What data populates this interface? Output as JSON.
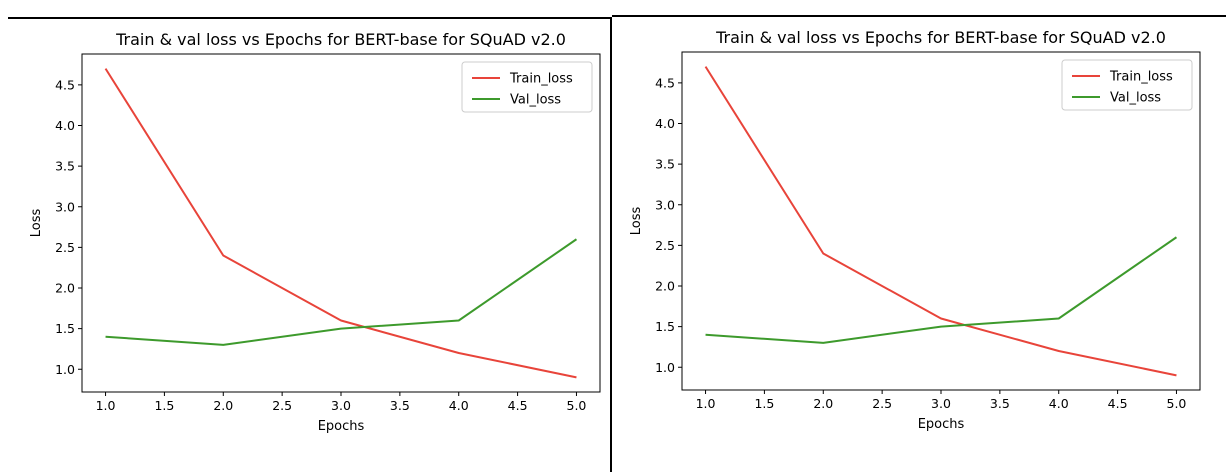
{
  "colors": {
    "train": "#e8443a",
    "val": "#3d9a2c",
    "axis": "#000000",
    "legend_border": "#cccccc"
  },
  "chart_data": [
    {
      "type": "line",
      "title": "Train & val loss vs Epochs for BERT-base for SQuAD v2.0",
      "xlabel": "Epochs",
      "ylabel": "Loss",
      "xlim": [
        0.8,
        5.2
      ],
      "ylim": [
        0.72,
        4.88
      ],
      "xticks": [
        "1.0",
        "1.5",
        "2.0",
        "2.5",
        "3.0",
        "3.5",
        "4.0",
        "4.5",
        "5.0"
      ],
      "yticks": [
        "1.0",
        "1.5",
        "2.0",
        "2.5",
        "3.0",
        "3.5",
        "4.0",
        "4.5"
      ],
      "legend_position": "top-right",
      "grid": false,
      "x": [
        1,
        2,
        3,
        4,
        5
      ],
      "series": [
        {
          "name": "Train_loss",
          "color": "#e8443a",
          "values": [
            4.7,
            2.4,
            1.6,
            1.2,
            0.9
          ]
        },
        {
          "name": "Val_loss",
          "color": "#3d9a2c",
          "values": [
            1.4,
            1.3,
            1.5,
            1.6,
            2.6
          ]
        }
      ]
    },
    {
      "type": "line",
      "title": "Train & val loss vs Epochs for BERT-base for SQuAD v2.0",
      "xlabel": "Epochs",
      "ylabel": "Loss",
      "xlim": [
        0.8,
        5.2
      ],
      "ylim": [
        0.72,
        4.88
      ],
      "xticks": [
        "1.0",
        "1.5",
        "2.0",
        "2.5",
        "3.0",
        "3.5",
        "4.0",
        "4.5",
        "5.0"
      ],
      "yticks": [
        "1.0",
        "1.5",
        "2.0",
        "2.5",
        "3.0",
        "3.5",
        "4.0",
        "4.5"
      ],
      "legend_position": "top-right",
      "grid": false,
      "x": [
        1,
        2,
        3,
        4,
        5
      ],
      "series": [
        {
          "name": "Train_loss",
          "color": "#e8443a",
          "values": [
            4.7,
            2.4,
            1.6,
            1.2,
            0.9
          ]
        },
        {
          "name": "Val_loss",
          "color": "#3d9a2c",
          "values": [
            1.4,
            1.3,
            1.5,
            1.6,
            2.6
          ]
        }
      ]
    }
  ]
}
